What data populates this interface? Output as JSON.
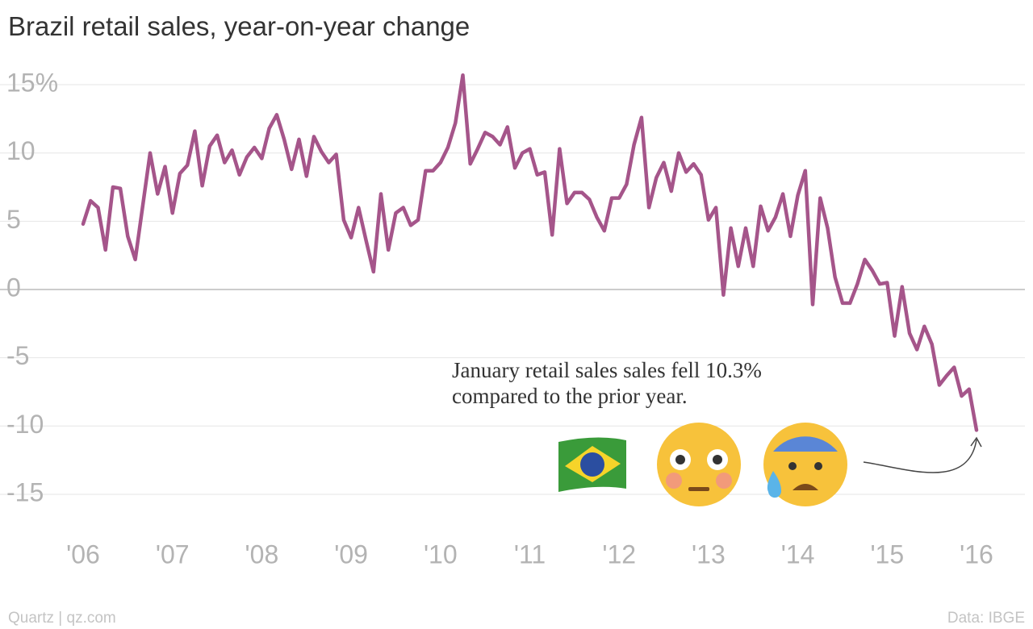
{
  "chart_data": {
    "type": "line",
    "title": "Brazil retail sales, year-on-year change",
    "annotation": "January retail sales sales fell 10.3%\ncompared to the prior year.",
    "source": "Data: IBGE",
    "credit": "Quartz | qz.com",
    "color": "#a5558a",
    "grid": true,
    "ylim": [
      -17,
      17
    ],
    "yticks": [
      -15,
      -10,
      -5,
      0,
      5,
      10,
      {
        "value": 15,
        "label": "15%"
      }
    ],
    "categories": [
      "'06",
      null,
      null,
      null,
      null,
      null,
      null,
      null,
      null,
      null,
      null,
      null,
      "'07",
      null,
      null,
      null,
      null,
      null,
      null,
      null,
      null,
      null,
      null,
      null,
      "'08",
      null,
      null,
      null,
      null,
      null,
      null,
      null,
      null,
      null,
      null,
      null,
      "'09",
      null,
      null,
      null,
      null,
      null,
      null,
      null,
      null,
      null,
      null,
      null,
      "'10",
      null,
      null,
      null,
      null,
      null,
      null,
      null,
      null,
      null,
      null,
      null,
      "'11",
      null,
      null,
      null,
      null,
      null,
      null,
      null,
      null,
      null,
      null,
      null,
      "'12",
      null,
      null,
      null,
      null,
      null,
      null,
      null,
      null,
      null,
      null,
      null,
      "'13",
      null,
      null,
      null,
      null,
      null,
      null,
      null,
      null,
      null,
      null,
      null,
      "'14",
      null,
      null,
      null,
      null,
      null,
      null,
      null,
      null,
      null,
      null,
      null,
      "'15",
      null,
      null,
      null,
      null,
      null,
      null,
      null,
      null,
      null,
      null,
      null,
      "'16"
    ],
    "values": [
      4.8,
      6.5,
      6.0,
      2.9,
      7.5,
      7.4,
      3.9,
      2.2,
      6.1,
      10.0,
      7.0,
      9.0,
      5.6,
      8.5,
      9.1,
      11.6,
      7.6,
      10.5,
      11.3,
      9.3,
      10.2,
      8.4,
      9.7,
      10.4,
      9.6,
      11.8,
      12.8,
      11.0,
      8.8,
      11.0,
      8.3,
      11.2,
      10.1,
      9.3,
      9.9,
      5.1,
      3.8,
      6.0,
      3.6,
      1.3,
      7.0,
      2.9,
      5.6,
      6.0,
      4.7,
      5.1,
      8.7,
      8.7,
      9.3,
      10.4,
      12.2,
      15.7,
      9.2,
      10.3,
      11.5,
      11.2,
      10.6,
      11.9,
      8.9,
      10.0,
      10.3,
      8.4,
      8.6,
      4.0,
      10.3,
      6.3,
      7.1,
      7.1,
      6.6,
      5.3,
      4.3,
      6.7,
      6.7,
      7.7,
      10.6,
      12.6,
      6.0,
      8.2,
      9.3,
      7.2,
      10.0,
      8.6,
      9.2,
      8.4,
      5.1,
      6.0,
      -0.4,
      4.5,
      1.7,
      4.5,
      1.7,
      6.1,
      4.3,
      5.3,
      7.0,
      3.9,
      6.9,
      8.7,
      -1.1,
      6.7,
      4.5,
      0.9,
      -1.0,
      -1.0,
      0.4,
      2.2,
      1.4,
      0.4,
      0.5,
      -3.4,
      0.2,
      -3.2,
      -4.4,
      -2.7,
      -4.0,
      -7.0,
      -6.3,
      -5.7,
      -7.8,
      -7.3,
      -10.3
    ]
  }
}
